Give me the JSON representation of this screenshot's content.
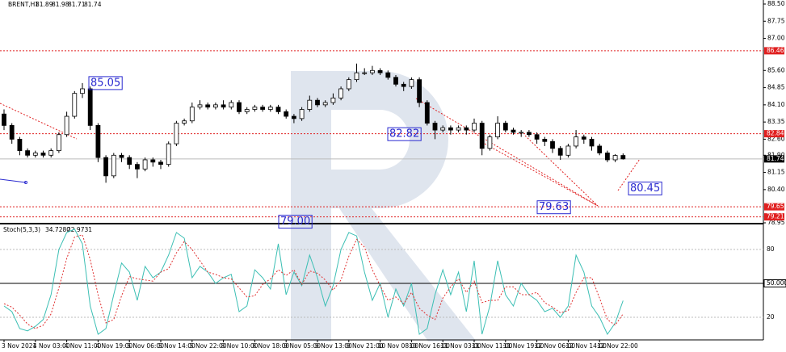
{
  "chart_data": {
    "type": "candlestick",
    "title": "BRENT,H1",
    "stoch_title": "Stoch(5,3,3)",
    "readout_labels": [
      "34.7280",
      "22.9731"
    ],
    "categories": [
      "3 Nov 2021",
      null,
      null,
      null,
      "4 Nov 03:00",
      null,
      null,
      null,
      "4 Nov 11:00",
      null,
      null,
      null,
      "4 Nov 19:00",
      null,
      null,
      null,
      "5 Nov 06:00",
      null,
      null,
      null,
      "5 Nov 14:00",
      null,
      null,
      null,
      "5 Nov 22:00",
      null,
      null,
      null,
      "8 Nov 10:00",
      null,
      null,
      null,
      "8 Nov 18:00",
      null,
      null,
      null,
      "9 Nov 05:00",
      null,
      null,
      null,
      "9 Nov 13:00",
      null,
      null,
      null,
      "9 Nov 21:00",
      null,
      null,
      null,
      "10 Nov 08:00",
      null,
      null,
      null,
      "10 Nov 16:00",
      null,
      null,
      null,
      "11 Nov 03:00",
      null,
      null,
      null,
      "11 Nov 11:00",
      null,
      null,
      null,
      "11 Nov 19:00",
      null,
      null,
      null,
      "12 Nov 06:00",
      null,
      null,
      null,
      "12 Nov 14:00",
      null,
      null,
      null,
      "12 Nov 22:00",
      null,
      null,
      null
    ],
    "open": [
      83.7,
      83.2,
      82.6,
      82.1,
      81.9,
      82.0,
      81.9,
      82.1,
      82.8,
      83.6,
      84.6,
      84.8,
      83.2,
      81.8,
      81.0,
      81.9,
      81.8,
      81.5,
      81.3,
      81.7,
      81.6,
      81.5,
      82.4,
      83.3,
      83.4,
      84.0,
      84.1,
      84.0,
      84.1,
      84.0,
      84.2,
      83.8,
      83.9,
      84.0,
      83.9,
      84.0,
      83.8,
      83.6,
      83.5,
      83.9,
      84.3,
      84.1,
      84.2,
      84.4,
      84.8,
      85.2,
      85.5,
      85.5,
      85.6,
      85.5,
      85.3,
      85.0,
      84.9,
      85.2,
      84.2,
      83.3,
      83.0,
      83.1,
      83.0,
      83.1,
      83.0,
      83.3,
      82.2,
      82.7,
      83.3,
      83.0,
      82.9,
      82.9,
      82.8,
      82.6,
      82.5,
      82.2,
      81.9,
      82.3,
      82.7,
      82.6,
      82.3,
      82.0,
      81.7,
      81.89
    ],
    "high": [
      83.9,
      83.3,
      82.7,
      82.2,
      82.1,
      82.1,
      82.2,
      82.9,
      83.8,
      84.7,
      85.05,
      84.9,
      83.3,
      81.9,
      82.0,
      82.0,
      81.9,
      81.6,
      81.8,
      81.8,
      81.7,
      82.5,
      83.4,
      83.5,
      84.2,
      84.3,
      84.2,
      84.2,
      84.3,
      84.3,
      84.3,
      84.0,
      84.1,
      84.1,
      84.1,
      84.1,
      83.9,
      83.7,
      84.0,
      84.5,
      84.4,
      84.3,
      84.6,
      84.9,
      85.3,
      85.9,
      85.7,
      85.8,
      85.7,
      85.6,
      85.4,
      85.1,
      85.3,
      85.3,
      84.3,
      83.4,
      83.2,
      83.2,
      83.2,
      83.2,
      83.5,
      83.4,
      82.8,
      83.6,
      83.4,
      83.1,
      83.0,
      83.0,
      82.9,
      82.7,
      82.6,
      82.3,
      82.4,
      83.0,
      82.8,
      82.7,
      82.4,
      82.1,
      81.95,
      81.98
    ],
    "low": [
      83.0,
      82.4,
      81.9,
      81.8,
      81.8,
      81.8,
      81.8,
      82.0,
      82.7,
      83.5,
      84.4,
      83.0,
      81.6,
      80.7,
      80.9,
      81.6,
      81.3,
      80.9,
      81.2,
      81.4,
      81.3,
      81.4,
      82.3,
      83.2,
      83.3,
      83.9,
      83.9,
      83.9,
      83.9,
      83.9,
      83.7,
      83.7,
      83.8,
      83.8,
      83.8,
      83.7,
      83.5,
      83.3,
      83.4,
      83.8,
      84.0,
      84.0,
      84.1,
      84.3,
      84.7,
      85.1,
      85.4,
      85.4,
      85.4,
      85.2,
      84.9,
      84.7,
      84.8,
      84.0,
      83.2,
      82.6,
      82.9,
      82.8,
      82.9,
      82.8,
      82.9,
      81.9,
      82.1,
      82.6,
      82.9,
      82.8,
      82.7,
      82.7,
      82.4,
      82.3,
      82.0,
      81.7,
      81.8,
      82.2,
      82.4,
      82.1,
      81.9,
      81.6,
      81.6,
      81.71
    ],
    "close": [
      83.2,
      82.6,
      82.1,
      81.9,
      82.0,
      81.9,
      82.1,
      82.8,
      83.6,
      84.6,
      84.8,
      83.2,
      81.8,
      81.0,
      81.9,
      81.8,
      81.5,
      81.3,
      81.7,
      81.6,
      81.5,
      82.4,
      83.3,
      83.4,
      84.0,
      84.1,
      84.0,
      84.1,
      84.0,
      84.2,
      83.8,
      83.9,
      84.0,
      83.9,
      84.0,
      83.8,
      83.6,
      83.5,
      83.9,
      84.3,
      84.1,
      84.2,
      84.4,
      84.8,
      85.2,
      85.5,
      85.5,
      85.6,
      85.5,
      85.3,
      85.0,
      84.9,
      85.2,
      84.2,
      83.3,
      83.0,
      83.1,
      83.0,
      83.1,
      83.0,
      83.3,
      82.2,
      82.7,
      83.3,
      83.0,
      82.9,
      82.9,
      82.8,
      82.6,
      82.5,
      82.2,
      81.9,
      82.3,
      82.7,
      82.6,
      82.3,
      82.0,
      81.7,
      81.89,
      81.74
    ],
    "ylim": [
      78.95,
      88.5
    ],
    "yticks": [
      {
        "value": 88.5,
        "label": "88.50"
      },
      87.75,
      {
        "value": 87,
        "label": "87.00"
      },
      {
        "value": 85.6,
        "label": "85.60"
      },
      84.85,
      {
        "value": 84.1,
        "label": "84.10"
      },
      83.35,
      {
        "value": 82.6,
        "label": "82.60"
      },
      {
        "value": 81.9,
        "label": "81.90"
      },
      81.15,
      {
        "value": 80.4,
        "label": "80.40"
      },
      78.95
    ],
    "levels": [
      86.46,
      82.84,
      79.65,
      79.21
    ],
    "level_color": "#e02020",
    "annotations": [
      85.05,
      82.82,
      79.63,
      80.45,
      {
        "value": 79,
        "label": "79.00"
      }
    ],
    "annotation_color": "#2a2ad0",
    "stoch": {
      "ylim": [
        0,
        100
      ],
      "yticks": [
        80,
        {
          "value": 50,
          "label": "50.0000"
        },
        20
      ],
      "series": [
        {
          "name": "%K",
          "color": "#3cbfb4",
          "values": [
            30,
            25,
            10,
            8,
            12,
            18,
            40,
            80,
            95,
            98,
            85,
            30,
            5,
            10,
            40,
            68,
            60,
            35,
            65,
            55,
            60,
            75,
            95,
            90,
            55,
            65,
            60,
            50,
            55,
            58,
            25,
            30,
            62,
            55,
            45,
            85,
            40,
            60,
            48,
            75,
            55,
            30,
            48,
            80,
            95,
            92,
            60,
            35,
            50,
            20,
            45,
            30,
            50,
            5,
            10,
            40,
            62,
            40,
            60,
            25,
            70,
            5,
            30,
            70,
            40,
            30,
            50,
            40,
            35,
            25,
            28,
            20,
            30,
            75,
            60,
            30,
            20,
            5,
            15,
            34.728
          ]
        },
        {
          "name": "%D",
          "color": "#e03030",
          "values": [
            32,
            29,
            22,
            14,
            10,
            13,
            23,
            46,
            72,
            91,
            93,
            71,
            40,
            15,
            18,
            39,
            56,
            54,
            53,
            52,
            60,
            63,
            77,
            87,
            80,
            70,
            60,
            58,
            55,
            54,
            46,
            38,
            39,
            49,
            54,
            62,
            57,
            62,
            49,
            61,
            59,
            53,
            44,
            53,
            74,
            89,
            82,
            62,
            48,
            35,
            38,
            32,
            42,
            28,
            22,
            18,
            37,
            47,
            54,
            42,
            52,
            33,
            35,
            35,
            47,
            47,
            40,
            40,
            42,
            33,
            29,
            24,
            26,
            42,
            55,
            55,
            37,
            18,
            13,
            22.9731
          ]
        }
      ]
    }
  }
}
